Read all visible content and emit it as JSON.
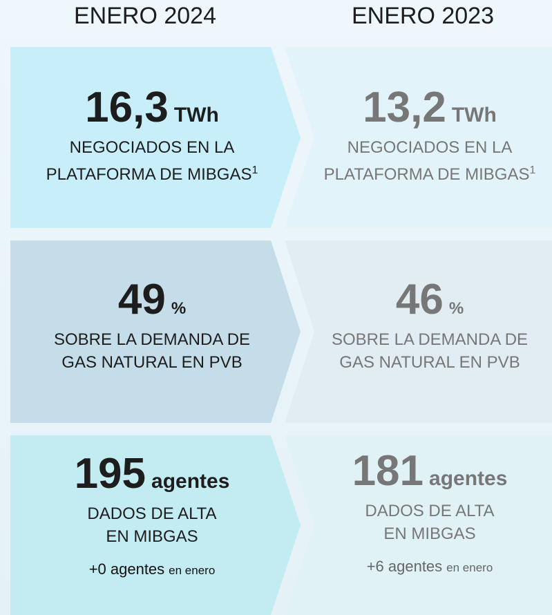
{
  "columns": [
    {
      "header": "ENERO 2024",
      "cards": [
        {
          "value": "16,3",
          "unit": "TWh",
          "label_lines": [
            "NEGOCIADOS EN LA",
            "PLATAFORMA DE MIBGAS"
          ],
          "sup": "1"
        },
        {
          "value": "49",
          "unit": "%",
          "label_lines": [
            "SOBRE LA DEMANDA DE",
            "GAS NATURAL EN PVB"
          ]
        },
        {
          "value": "195",
          "unit": "agentes",
          "label_lines": [
            "DADOS DE ALTA",
            "EN MIBGAS"
          ],
          "note_bold": "+0 agentes",
          "note": "en enero"
        }
      ]
    },
    {
      "header": "ENERO 2023",
      "cards": [
        {
          "value": "13,2",
          "unit": "TWh",
          "label_lines": [
            "NEGOCIADOS EN LA",
            "PLATAFORMA DE MIBGAS"
          ],
          "sup": "1"
        },
        {
          "value": "46",
          "unit": "%",
          "label_lines": [
            "SOBRE LA DEMANDA DE",
            "GAS NATURAL EN PVB"
          ]
        },
        {
          "value": "181",
          "unit": "agentes",
          "label_lines": [
            "DADOS DE ALTA",
            "EN MIBGAS"
          ],
          "note_bold": "+6 agentes",
          "note": "en enero"
        }
      ]
    }
  ]
}
